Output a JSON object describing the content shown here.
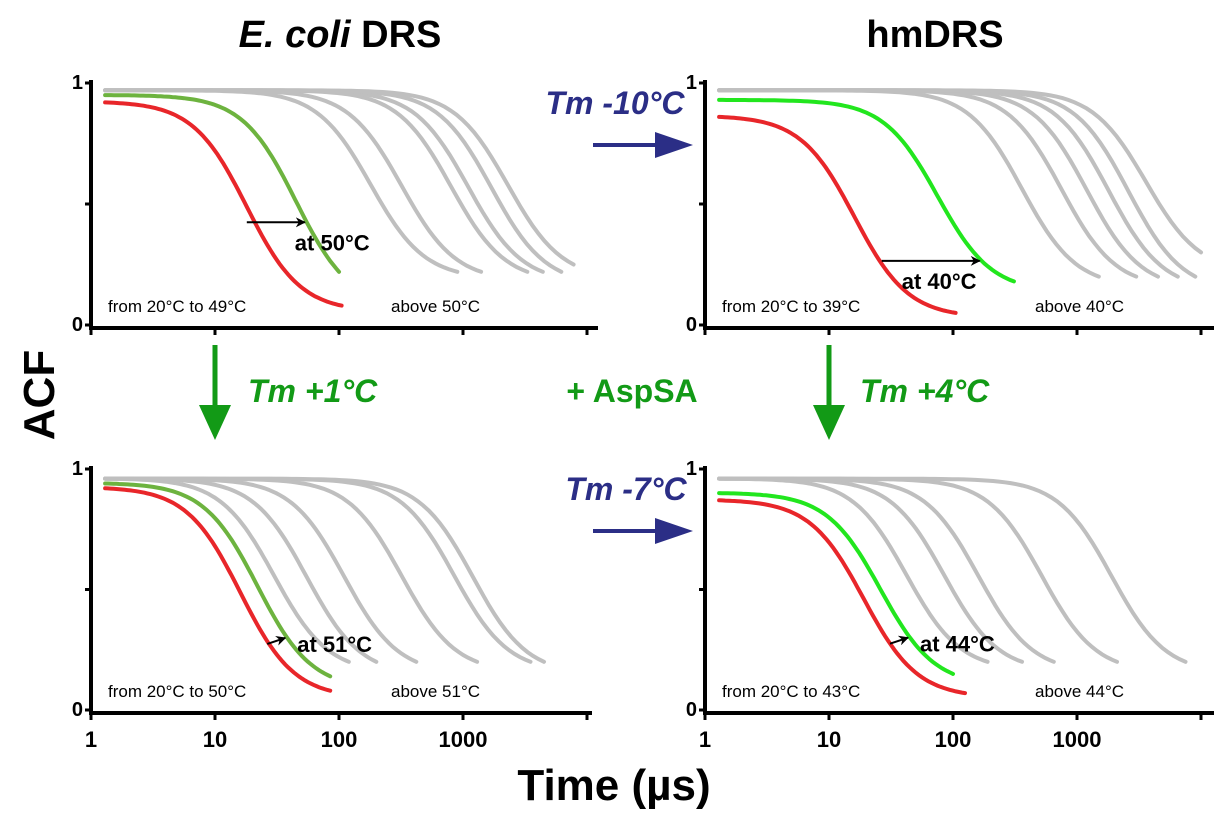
{
  "figure": {
    "column_titles": [
      {
        "italic": "E. coli",
        "rest": " DRS"
      },
      {
        "italic": "",
        "rest": "hmDRS"
      }
    ],
    "ylabel": "ACF",
    "xlabel": "Time (µs)",
    "x_tick_labels": [
      "1",
      "10",
      "100",
      "1000"
    ],
    "y_tick_labels": [
      "0",
      "1"
    ],
    "center_label": "+ AspSA",
    "transitions": {
      "top_horizontal": "Tm -10°C",
      "bottom_horizontal": "Tm -7°C",
      "left_vertical": "Tm +1°C",
      "right_vertical": "Tm +4°C"
    },
    "colors": {
      "below_tm": "#e8262a",
      "at_tm_ecoli": "#6db33f",
      "at_tm_hm": "#22e61e",
      "above_tm": "#bfbfbf",
      "blue_arrow": "#2b2e86",
      "green_arrow": "#129a16"
    }
  },
  "chart_data": [
    {
      "type": "line",
      "panel": "top-left",
      "x_scale": "log",
      "xlim": [
        1,
        10000
      ],
      "ylim": [
        0,
        1
      ],
      "below_note": "from 20°C to 49°C",
      "above_note": "above 50°C",
      "at_label": "at 50°C",
      "red": {
        "x0": 1.3,
        "x1": 105,
        "ystart": 0.92,
        "yend": 0.08,
        "tau": 18
      },
      "green": {
        "x0": 1.3,
        "x1": 100,
        "ystart": 0.95,
        "yend": 0.22,
        "tau": 45
      },
      "grays": [
        {
          "x0": 1.3,
          "x1": 900,
          "ystart": 0.97,
          "yend": 0.22,
          "tau": 180
        },
        {
          "x0": 1.3,
          "x1": 1400,
          "ystart": 0.97,
          "yend": 0.22,
          "tau": 320
        },
        {
          "x0": 1.3,
          "x1": 3300,
          "ystart": 0.97,
          "yend": 0.22,
          "tau": 800
        },
        {
          "x0": 1.3,
          "x1": 4400,
          "ystart": 0.97,
          "yend": 0.22,
          "tau": 1100
        },
        {
          "x0": 1.3,
          "x1": 6200,
          "ystart": 0.97,
          "yend": 0.22,
          "tau": 1700
        },
        {
          "x0": 1.3,
          "x1": 7800,
          "ystart": 0.97,
          "yend": 0.25,
          "tau": 2300
        }
      ]
    },
    {
      "type": "line",
      "panel": "top-right",
      "x_scale": "log",
      "xlim": [
        1,
        10000
      ],
      "ylim": [
        0,
        1
      ],
      "below_note": "from 20°C to 39°C",
      "above_note": "above 40°C",
      "at_label": "at 40°C",
      "red": {
        "x0": 1.3,
        "x1": 105,
        "ystart": 0.86,
        "yend": 0.05,
        "tau": 16
      },
      "green": {
        "x0": 1.3,
        "x1": 310,
        "ystart": 0.93,
        "yend": 0.18,
        "tau": 75
      },
      "grays": [
        {
          "x0": 1.3,
          "x1": 1500,
          "ystart": 0.97,
          "yend": 0.2,
          "tau": 360
        },
        {
          "x0": 1.3,
          "x1": 3000,
          "ystart": 0.97,
          "yend": 0.2,
          "tau": 750
        },
        {
          "x0": 1.3,
          "x1": 4500,
          "ystart": 0.97,
          "yend": 0.2,
          "tau": 1200
        },
        {
          "x0": 1.3,
          "x1": 6500,
          "ystart": 0.97,
          "yend": 0.2,
          "tau": 1800
        },
        {
          "x0": 1.3,
          "x1": 9000,
          "ystart": 0.97,
          "yend": 0.2,
          "tau": 2600
        },
        {
          "x0": 1.3,
          "x1": 10000,
          "ystart": 0.97,
          "yend": 0.3,
          "tau": 3600
        }
      ]
    },
    {
      "type": "line",
      "panel": "bottom-left",
      "x_scale": "log",
      "xlim": [
        1,
        10000
      ],
      "ylim": [
        0,
        1
      ],
      "below_note": "from 20°C to 50°C",
      "above_note": "above 51°C",
      "at_label": "at 51°C",
      "red": {
        "x0": 1.3,
        "x1": 85,
        "ystart": 0.92,
        "yend": 0.08,
        "tau": 16
      },
      "green": {
        "x0": 1.3,
        "x1": 85,
        "ystart": 0.94,
        "yend": 0.14,
        "tau": 22
      },
      "grays": [
        {
          "x0": 1.3,
          "x1": 120,
          "ystart": 0.96,
          "yend": 0.2,
          "tau": 30
        },
        {
          "x0": 1.3,
          "x1": 200,
          "ystart": 0.96,
          "yend": 0.2,
          "tau": 55
        },
        {
          "x0": 1.3,
          "x1": 420,
          "ystart": 0.96,
          "yend": 0.2,
          "tau": 110
        },
        {
          "x0": 1.3,
          "x1": 1300,
          "ystart": 0.96,
          "yend": 0.2,
          "tau": 320
        },
        {
          "x0": 1.3,
          "x1": 3500,
          "ystart": 0.96,
          "yend": 0.2,
          "tau": 850
        },
        {
          "x0": 1.3,
          "x1": 4500,
          "ystart": 0.96,
          "yend": 0.2,
          "tau": 1200
        }
      ]
    },
    {
      "type": "line",
      "panel": "bottom-right",
      "x_scale": "log",
      "xlim": [
        1,
        10000
      ],
      "ylim": [
        0,
        1
      ],
      "below_note": "from 20°C to 43°C",
      "above_note": "above 44°C",
      "at_label": "at 44°C",
      "red": {
        "x0": 1.3,
        "x1": 125,
        "ystart": 0.87,
        "yend": 0.07,
        "tau": 19
      },
      "green": {
        "x0": 1.3,
        "x1": 100,
        "ystart": 0.9,
        "yend": 0.15,
        "tau": 26
      },
      "grays": [
        {
          "x0": 1.3,
          "x1": 190,
          "ystart": 0.96,
          "yend": 0.2,
          "tau": 42
        },
        {
          "x0": 1.3,
          "x1": 360,
          "ystart": 0.96,
          "yend": 0.2,
          "tau": 85
        },
        {
          "x0": 1.3,
          "x1": 650,
          "ystart": 0.96,
          "yend": 0.2,
          "tau": 160
        },
        {
          "x0": 1.3,
          "x1": 2100,
          "ystart": 0.96,
          "yend": 0.2,
          "tau": 520
        },
        {
          "x0": 1.3,
          "x1": 7500,
          "ystart": 0.96,
          "yend": 0.2,
          "tau": 1900
        }
      ]
    }
  ]
}
